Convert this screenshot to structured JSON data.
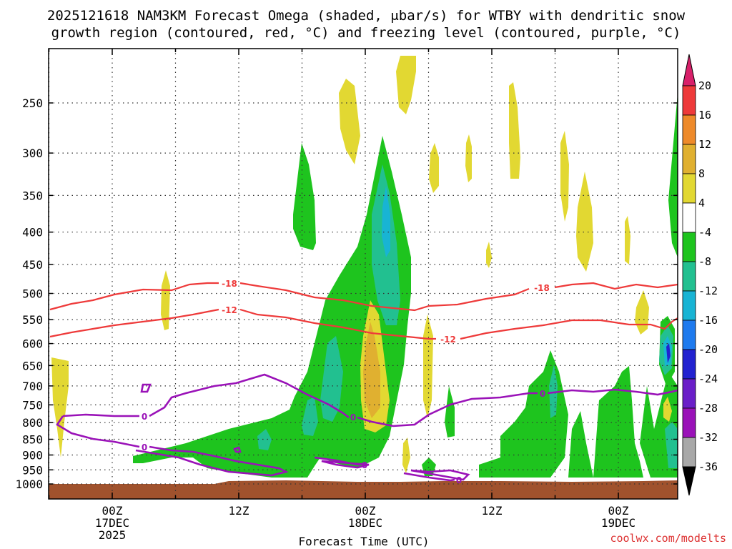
{
  "chart_data": {
    "type": "time-height contour",
    "title_line1": "2025121618 NAM3KM Forecast Omega (shaded, μbar/s) for WTBY with dendritic snow",
    "title_line2": "growth region (contoured, red, °C) and freezing level (contoured, purple, °C)",
    "xlabel": "Forecast Time (UTC)",
    "credit": "coolwx.com/modelts",
    "y_ticks": [
      "250",
      "300",
      "350",
      "400",
      "450",
      "500",
      "550",
      "600",
      "650",
      "700",
      "750",
      "800",
      "850",
      "900",
      "950",
      "1000"
    ],
    "x_ticks": [
      {
        "line1": "00Z",
        "line2": "17DEC",
        "line3": "2025"
      },
      {
        "line1": "12Z",
        "line2": "",
        "line3": ""
      },
      {
        "line1": "00Z",
        "line2": "18DEC",
        "line3": ""
      },
      {
        "line1": "12Z",
        "line2": "",
        "line3": ""
      },
      {
        "line1": "00Z",
        "line2": "19DEC",
        "line3": ""
      }
    ],
    "colorbar": [
      {
        "label": "20",
        "color": "#d8206a"
      },
      {
        "label": "16",
        "color": "#ee3a3a"
      },
      {
        "label": "12",
        "color": "#ee8a2a"
      },
      {
        "label": "8",
        "color": "#e0b030"
      },
      {
        "label": "4",
        "color": "#e2d832"
      },
      {
        "label": "-4",
        "color": "#ffffff"
      },
      {
        "label": "-8",
        "color": "#1ec41e"
      },
      {
        "label": "-12",
        "color": "#22c090"
      },
      {
        "label": "-16",
        "color": "#18b4d4"
      },
      {
        "label": "-20",
        "color": "#1e7aee"
      },
      {
        "label": "-24",
        "color": "#2222d0"
      },
      {
        "label": "-28",
        "color": "#6a1ec8"
      },
      {
        "label": "-32",
        "color": "#9a12b8"
      },
      {
        "label": "-36",
        "color": "#a8a8a8"
      }
    ],
    "contour_labels": {
      "dgz_top": "-18",
      "dgz_bottom": "-12",
      "freezing": "0"
    }
  }
}
